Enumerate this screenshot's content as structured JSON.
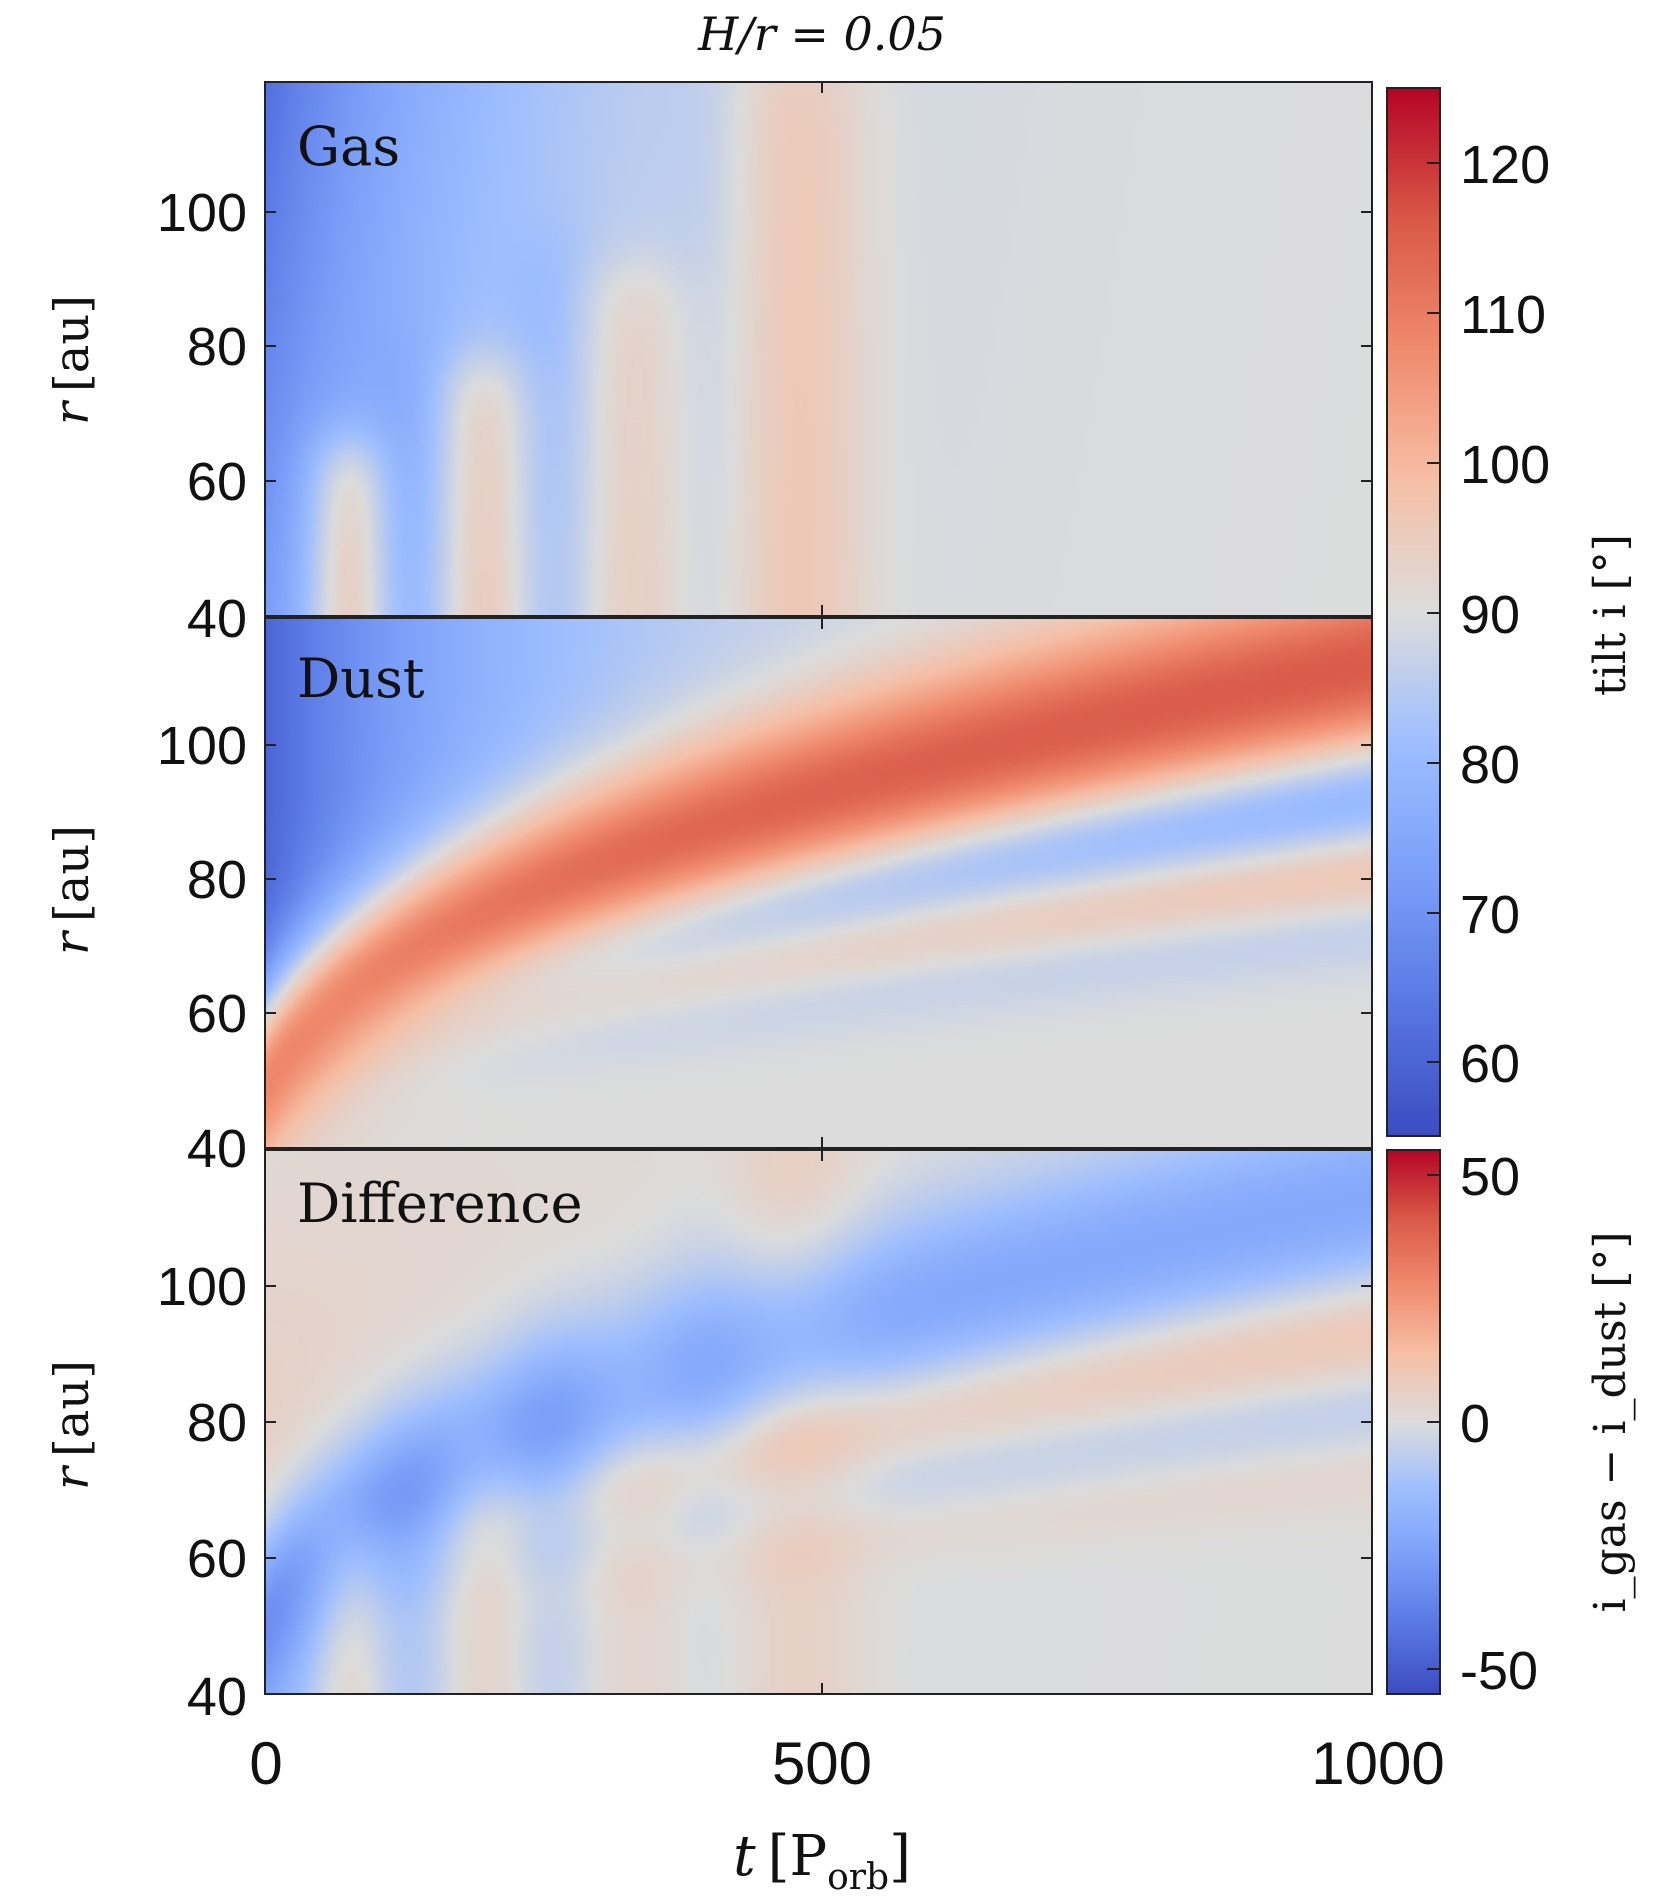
{
  "title": "H/r = 0.05",
  "x_axis": {
    "label_var": "t",
    "label_unit": "P",
    "label_unit_sub": "orb",
    "ticks": [
      "0",
      "500",
      "1000"
    ]
  },
  "y_axis": {
    "label_var": "r",
    "label_unit": "au",
    "ticks": [
      "40",
      "60",
      "80",
      "100"
    ]
  },
  "colorbar_tilt": {
    "label": "tilt i [°]",
    "ticks": [
      "60",
      "70",
      "80",
      "90",
      "100",
      "110",
      "120"
    ]
  },
  "colorbar_diff": {
    "label": "i_gas − i_dust [°]",
    "ticks": [
      "-50",
      "0",
      "50"
    ]
  },
  "colors": {
    "low": "#3a4cc0",
    "mid": "#dcdcdc",
    "high": "#b40426"
  },
  "chart_data": [
    {
      "type": "heatmap",
      "panel_label": "Gas",
      "x": {
        "label": "t [P_orb]",
        "range": [
          0,
          1000
        ]
      },
      "y": {
        "label": "r [au]",
        "range": [
          40,
          120
        ]
      },
      "colorbar": {
        "label": "tilt i [°]",
        "range": [
          55,
          125
        ]
      },
      "features": [
        {
          "desc": "low tilt region at early times, large r",
          "t": [
            0,
            150
          ],
          "r": [
            40,
            120
          ],
          "value": 62
        },
        {
          "desc": "oscillation crests",
          "t_centers": [
            75,
            195,
            330,
            480
          ],
          "r_max": [
            68,
            78,
            92,
            120
          ],
          "value_peak": 103
        },
        {
          "desc": "relaxed state",
          "t": [
            600,
            1000
          ],
          "value": 90
        }
      ]
    },
    {
      "type": "heatmap",
      "panel_label": "Dust",
      "x": {
        "label": "t [P_orb]",
        "range": [
          0,
          1000
        ]
      },
      "y": {
        "label": "r [au]",
        "range": [
          40,
          120
        ]
      },
      "colorbar": {
        "label": "tilt i [°]",
        "range": [
          55,
          125
        ]
      },
      "features": [
        {
          "desc": "high-tilt band r≈40+72*(t/1000)^0.5",
          "value_peak": 115
        },
        {
          "desc": "low-tilt band below it",
          "value_min": 75
        },
        {
          "desc": "second weaker high band",
          "value_peak": 100
        }
      ]
    },
    {
      "type": "heatmap",
      "panel_label": "Difference",
      "x": {
        "label": "t [P_orb]",
        "range": [
          0,
          1000
        ]
      },
      "y": {
        "label": "r [au]",
        "range": [
          40,
          120
        ]
      },
      "colorbar": {
        "label": "i_gas − i_dust [°]",
        "range": [
          -55,
          55
        ]
      },
      "features": [
        {
          "desc": "negative band following the dust high-tilt band",
          "value_min": -30
        },
        {
          "desc": "positive band below",
          "value_peak": 20
        },
        {
          "desc": "positive region at large r, early t",
          "value_peak": 18
        }
      ]
    }
  ]
}
